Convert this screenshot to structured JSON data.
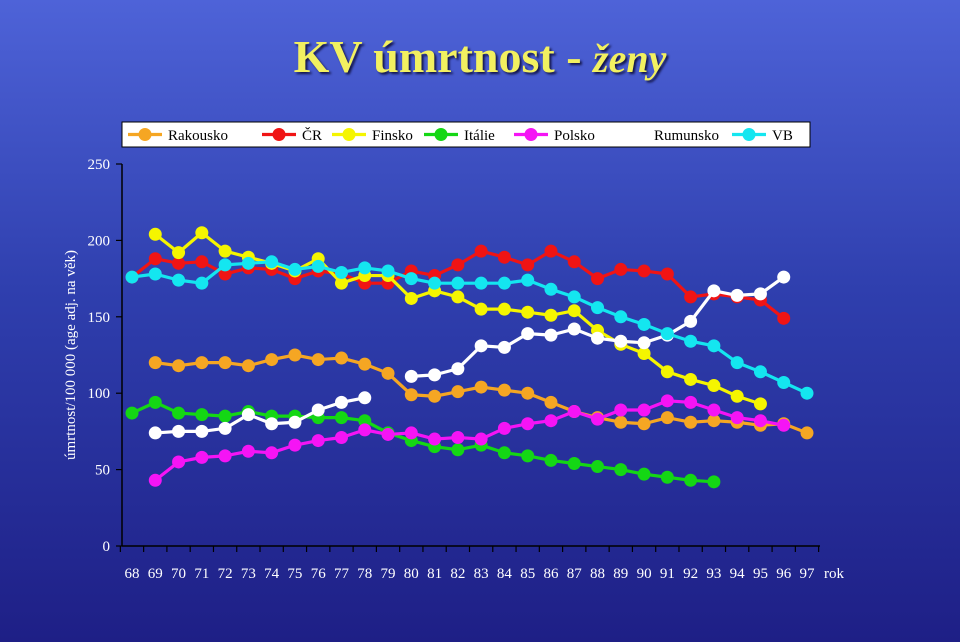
{
  "title": {
    "main": "KV úmrtnost",
    "dash": " - ",
    "sub": "ženy"
  },
  "chart_data": {
    "type": "line",
    "ylabel": "úmrtnost/100 000 (age adj. na věk)",
    "xlabel": "rok",
    "ylim": [
      0,
      250
    ],
    "yticks": [
      0,
      50,
      100,
      150,
      200,
      250
    ],
    "xlim": [
      68,
      97
    ],
    "x_tick_labels": [
      "68",
      "69",
      "70",
      "71",
      "72",
      "73",
      "74",
      "75",
      "76",
      "77",
      "78",
      "79",
      "80",
      "81",
      "82",
      "83",
      "84",
      "85",
      "86",
      "87",
      "88",
      "89",
      "90",
      "91",
      "92",
      "93",
      "94",
      "95",
      "96",
      "97"
    ],
    "legend_position": "top",
    "series": [
      {
        "name": "Rakousko",
        "color": "#f5a623",
        "x_start": 69,
        "values": [
          120,
          118,
          120,
          120,
          118,
          122,
          125,
          122,
          123,
          119,
          113,
          99,
          98,
          101,
          104,
          102,
          100,
          94,
          88,
          84,
          81,
          80,
          84,
          81,
          82,
          81,
          79,
          80,
          74
        ]
      },
      {
        "name": "ČR",
        "color": "#f01414",
        "x_start": 68,
        "values": [
          176,
          188,
          185,
          186,
          178,
          182,
          181,
          175,
          180,
          178,
          172,
          172,
          180,
          177,
          184,
          193,
          189,
          184,
          193,
          186,
          175,
          181,
          180,
          178,
          163,
          165,
          163,
          161,
          149
        ]
      },
      {
        "name": "Finsko",
        "color": "#f5f500",
        "x_start": 69,
        "values": [
          204,
          192,
          205,
          193,
          189,
          185,
          180,
          188,
          172,
          177,
          177,
          162,
          167,
          163,
          155,
          155,
          153,
          151,
          154,
          141,
          132,
          126,
          114,
          109,
          105,
          98,
          93
        ]
      },
      {
        "name": "Itálie",
        "color": "#14d714",
        "x_start": 68,
        "values": [
          87,
          94,
          87,
          86,
          85,
          88,
          85,
          85,
          84,
          84,
          82,
          74,
          69,
          65,
          63,
          66,
          61,
          59,
          56,
          54,
          52,
          50,
          47,
          45,
          43,
          42
        ]
      },
      {
        "name": "Polsko",
        "color": "#f514f5",
        "x_start": 69,
        "values": [
          43,
          55,
          58,
          59,
          62,
          61,
          66,
          69,
          71,
          76,
          73,
          74,
          70,
          71,
          70,
          77,
          80,
          82,
          88,
          83,
          89,
          89,
          95,
          94,
          89,
          84,
          82,
          79
        ]
      },
      {
        "name": "Rumunsko",
        "color": "#ffffff",
        "x_start": 69,
        "values": [
          74,
          75,
          75,
          77,
          86,
          80,
          81,
          89,
          94,
          97,
          null,
          111,
          112,
          116,
          131,
          130,
          139,
          138,
          142,
          136,
          134,
          133,
          138,
          147,
          167,
          164,
          165,
          176
        ]
      },
      {
        "name": "VB",
        "color": "#14e6f0",
        "x_start": 68,
        "values": [
          176,
          178,
          174,
          172,
          184,
          185,
          186,
          181,
          183,
          179,
          182,
          180,
          175,
          172,
          172,
          172,
          172,
          174,
          168,
          163,
          156,
          150,
          145,
          139,
          134,
          131,
          120,
          114,
          107,
          100
        ]
      }
    ]
  }
}
